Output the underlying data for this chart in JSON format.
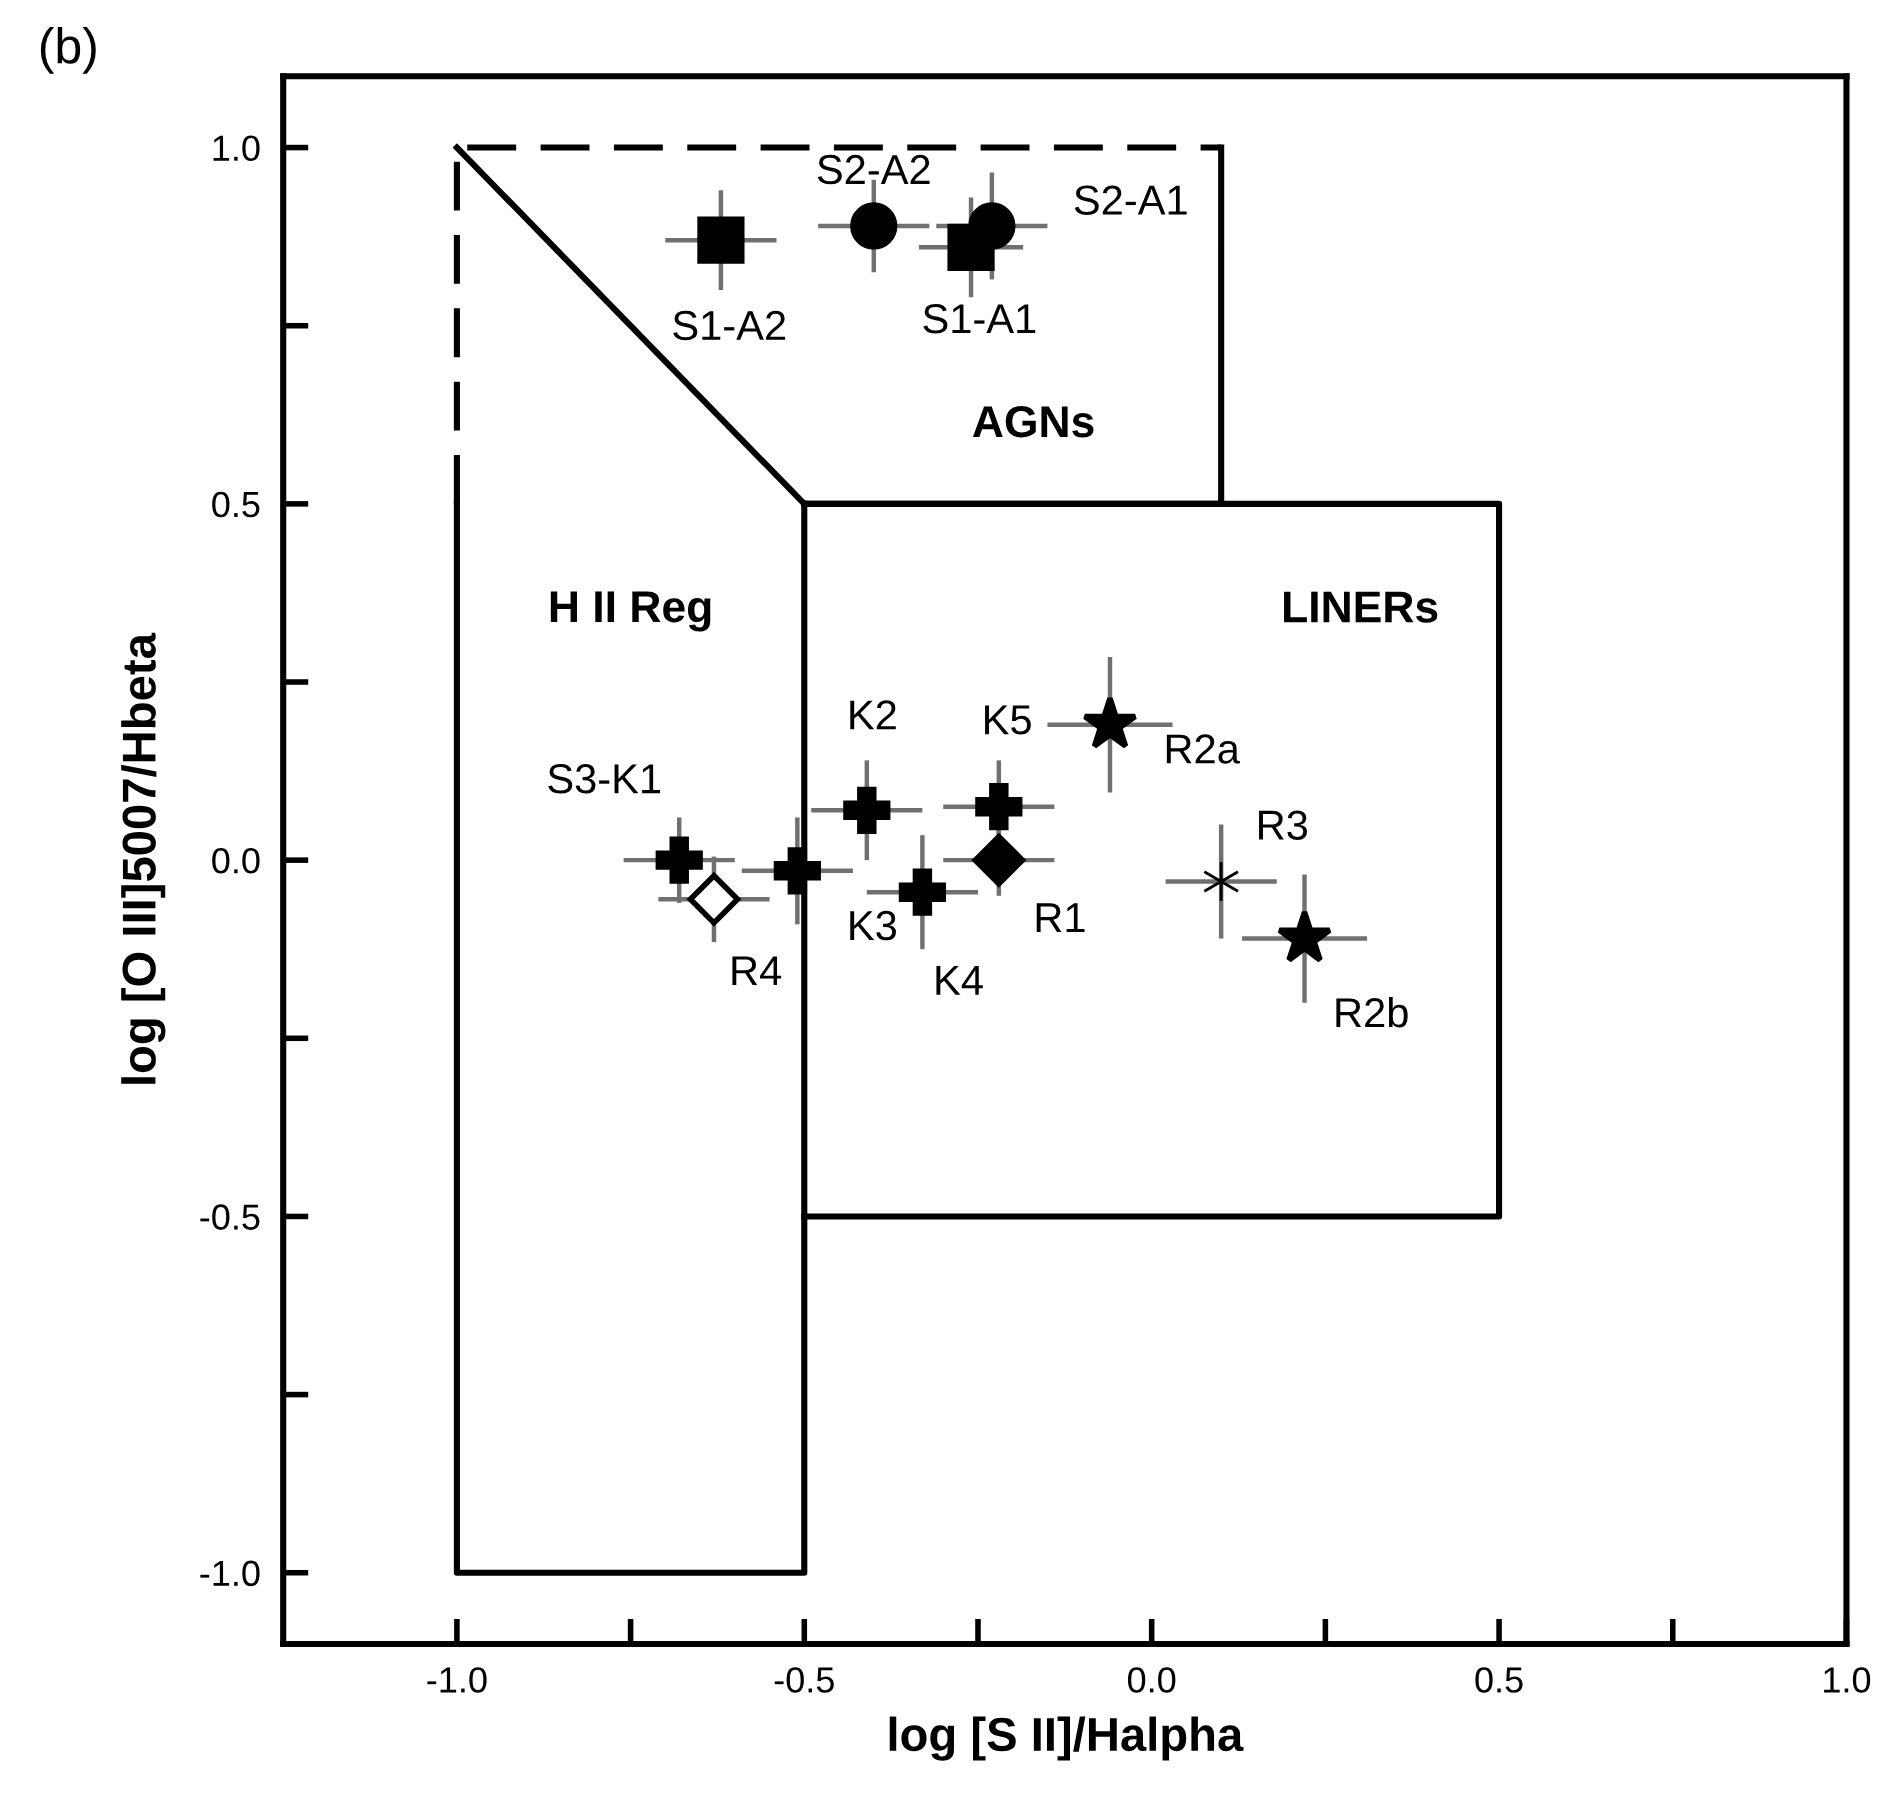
{
  "chart_data": {
    "type": "scatter",
    "xlabel": "log [S II]/Halpha",
    "ylabel": "log [O III]5007/Hbeta",
    "xlim": [
      -1.25,
      1.0
    ],
    "ylim": [
      -1.1,
      1.1
    ],
    "xticks": [
      {
        "value": -1,
        "label": "-1.0"
      },
      {
        "value": -0.75,
        "label": null
      },
      {
        "value": -0.5,
        "label": "-0.5"
      },
      {
        "value": -0.25,
        "label": null
      },
      {
        "value": 0,
        "label": "0.0"
      },
      {
        "value": 0.25,
        "label": null
      },
      {
        "value": 0.5,
        "label": "0.5"
      },
      {
        "value": 0.75,
        "label": null
      },
      {
        "value": 1,
        "label": "1.0"
      }
    ],
    "yticks": [
      {
        "value": -1,
        "label": "-1.0"
      },
      {
        "value": -0.75,
        "label": null
      },
      {
        "value": -0.5,
        "label": "-0.5"
      },
      {
        "value": -0.25,
        "label": null
      },
      {
        "value": 0,
        "label": "0.0"
      },
      {
        "value": 0.25,
        "label": null
      },
      {
        "value": 0.5,
        "label": "0.5"
      },
      {
        "value": 0.75,
        "label": null
      },
      {
        "value": 1,
        "label": "1.0"
      }
    ],
    "grid": false,
    "series": [
      {
        "type": "line",
        "color": "#000000",
        "line_style": "dashed",
        "x": [
          -1.0,
          -1.0,
          0.1
        ],
        "values": [
          0.5,
          1.0,
          1.0
        ]
      },
      {
        "type": "line",
        "color": "#000000",
        "line_style": "solid",
        "x": [
          0.1,
          0.1,
          -0.5,
          -1.0
        ],
        "values": [
          1.0,
          0.5,
          0.5,
          1.0
        ]
      },
      {
        "type": "line",
        "color": "#000000",
        "line_style": "solid",
        "x": [
          -1.0,
          -1.0,
          -0.5,
          -0.5
        ],
        "values": [
          0.5,
          -1.0,
          -1.0,
          0.5
        ]
      },
      {
        "type": "line",
        "color": "#000000",
        "line_style": "solid",
        "x": [
          -0.5,
          0.5,
          0.5,
          -0.5
        ],
        "values": [
          0.5,
          0.5,
          -0.5,
          -0.5
        ]
      },
      {
        "marker": "square",
        "color": "#000000",
        "x": [
          -0.62,
          -0.26
        ],
        "values": [
          0.87,
          0.86
        ],
        "xerrors": [
          0.08,
          0.075
        ],
        "errors": [
          0.07,
          0.07
        ]
      },
      {
        "marker": "circle",
        "color": "#000000",
        "x": [
          -0.4,
          -0.23
        ],
        "values": [
          0.89,
          0.89
        ],
        "xerrors": [
          0.08,
          0.08
        ],
        "errors": [
          0.065,
          0.075
        ]
      },
      {
        "marker": "cross",
        "color": "#000000",
        "x": [
          -0.68,
          -0.41,
          -0.51,
          -0.33,
          -0.22
        ],
        "values": [
          0.0,
          0.07,
          -0.015,
          -0.045,
          0.075
        ],
        "xerrors": [
          0.08,
          0.08,
          0.08,
          0.08,
          0.08
        ],
        "errors": [
          0.06,
          0.07,
          0.075,
          0.08,
          0.065
        ]
      },
      {
        "marker": "diamond",
        "color": "#ffffff",
        "x": [
          -0.63
        ],
        "values": [
          -0.055
        ],
        "xerrors": [
          0.08
        ],
        "errors": [
          0.06
        ]
      },
      {
        "marker": "diamond",
        "color": "#000000",
        "x": [
          -0.22
        ],
        "values": [
          0.0
        ],
        "xerrors": [
          0.08
        ],
        "errors": [
          0.05
        ]
      },
      {
        "marker": "star",
        "color": "#000000",
        "x": [
          -0.06,
          0.22
        ],
        "values": [
          0.19,
          -0.11
        ],
        "xerrors": [
          0.09,
          0.09
        ],
        "errors": [
          0.095,
          0.09
        ]
      },
      {
        "color": "#000000",
        "x": [
          0.1
        ],
        "values": [
          -0.03
        ],
        "xerrors": [
          0.08
        ],
        "errors": [
          0.08
        ]
      }
    ],
    "annotations": [
      "(b)",
      "AGNs",
      "H II Reg",
      "LINERs",
      {
        "text": "S1-A2",
        "x": -0.62,
        "y": 0.87
      },
      {
        "text": "S2-A2",
        "x": -0.4,
        "y": 0.89
      },
      {
        "text": "S2-A1",
        "x": -0.23,
        "y": 0.89
      },
      {
        "text": "S1-A1",
        "x": -0.26,
        "y": 0.86
      },
      {
        "text": "R2a",
        "x": -0.06,
        "y": 0.19
      },
      {
        "text": "K2",
        "x": -0.41,
        "y": 0.07
      },
      {
        "text": "K5",
        "x": -0.22,
        "y": 0.075
      },
      {
        "text": "S3-K1",
        "x": -0.68,
        "y": 0.0
      },
      {
        "text": "R4",
        "x": -0.63,
        "y": -0.055
      },
      {
        "text": "K3",
        "x": -0.51,
        "y": -0.015
      },
      {
        "text": "K4",
        "x": -0.33,
        "y": -0.045
      },
      {
        "text": "R1",
        "x": -0.22,
        "y": 0.0
      },
      {
        "text": "R3",
        "x": 0.1,
        "y": -0.03
      },
      {
        "text": "R2b",
        "x": 0.22,
        "y": -0.11
      }
    ]
  }
}
